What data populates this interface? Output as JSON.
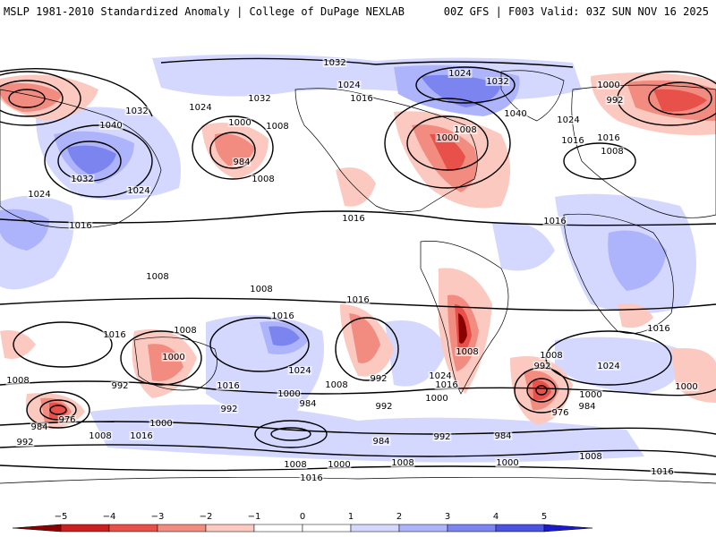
{
  "header": {
    "title_left": "MSLP 1981-2010 Standardized Anomaly | College of DuPage NEXLAB",
    "title_right": "00Z GFS | F003 Valid: 03Z SUN NOV 16 2025"
  },
  "colors": {
    "neg5": "#8b0000",
    "neg4": "#cc2020",
    "neg3": "#e8504a",
    "neg2": "#f28c80",
    "neg1": "#fbc9bf",
    "zero": "#ffffff",
    "pos1": "#d4d8ff",
    "pos2": "#aeb4fb",
    "pos3": "#7c84f0",
    "pos4": "#4a52e0",
    "pos5": "#1a1ad0",
    "land": "#000000",
    "contour": "#000000"
  },
  "colorbar": {
    "ticks": [
      "−5",
      "−4",
      "−3",
      "−2",
      "−1",
      "0",
      "1",
      "2",
      "3",
      "4",
      "5"
    ]
  },
  "isobar_labels": [
    "1032",
    "1024",
    "1032",
    "1016",
    "1040",
    "1024",
    "1032",
    "1024",
    "1024",
    "1032",
    "1000",
    "1008",
    "1016",
    "984",
    "1008",
    "1024",
    "1016",
    "1008",
    "1000",
    "1032",
    "1040",
    "1024",
    "1000",
    "992",
    "1016",
    "1008",
    "1016",
    "1016",
    "1008",
    "1008",
    "1016",
    "1016",
    "1016",
    "1008",
    "1016",
    "1008",
    "1000",
    "992",
    "1024",
    "1016",
    "1000",
    "1008",
    "992",
    "1024",
    "1008",
    "1016",
    "1000",
    "992",
    "1008",
    "976",
    "984",
    "1000",
    "1024",
    "976",
    "1000",
    "992",
    "984",
    "992",
    "984",
    "1008",
    "1016",
    "1000",
    "992",
    "1008",
    "984",
    "992",
    "1016",
    "1000",
    "1008",
    "984",
    "1016",
    "1000",
    "1008"
  ]
}
